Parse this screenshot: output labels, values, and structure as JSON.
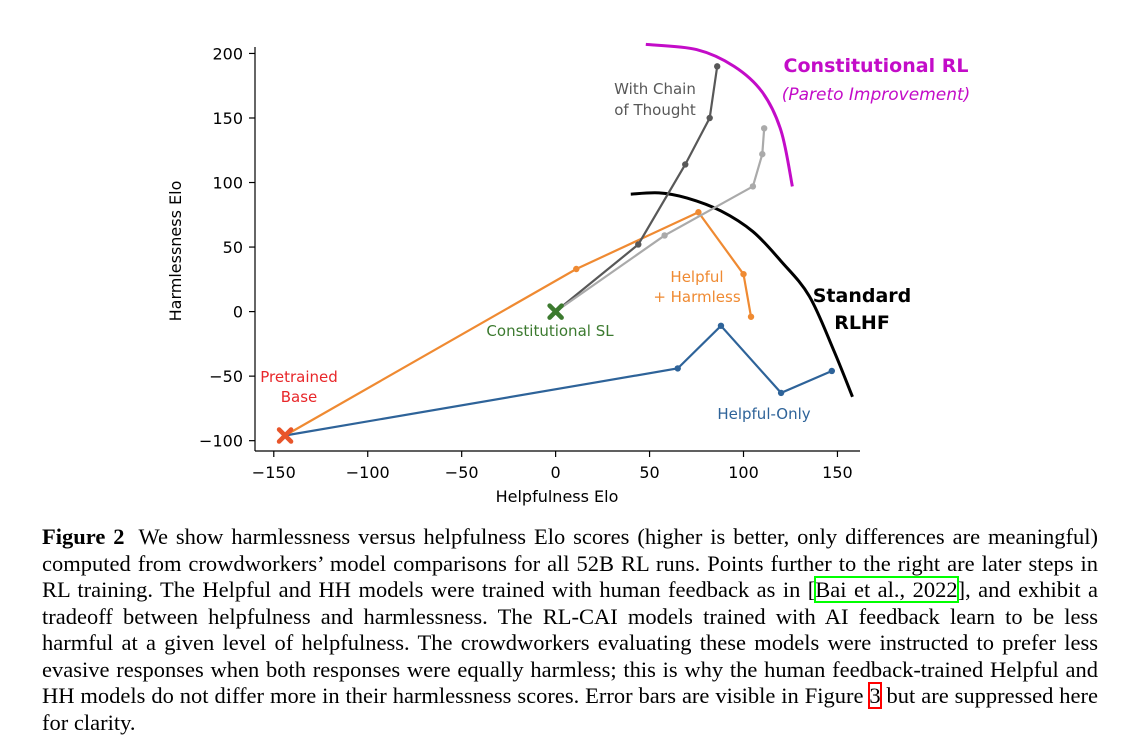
{
  "chart_data": {
    "type": "line",
    "xlabel": "Helpfulness Elo",
    "ylabel": "Harmlessness Elo",
    "xlim": [
      -160,
      162
    ],
    "ylim": [
      -108,
      205
    ],
    "xticks": [
      -150,
      -100,
      -50,
      0,
      50,
      100,
      150
    ],
    "yticks": [
      200,
      150,
      100,
      50,
      0,
      -50,
      -100
    ],
    "xtick_labels": [
      "−150",
      "−100",
      "−50",
      "0",
      "50",
      "100",
      "150"
    ],
    "ytick_labels": [
      "200",
      "150",
      "100",
      "50",
      "0",
      "−50",
      "−100"
    ],
    "grid": false,
    "series": [
      {
        "name": "Helpful-Only",
        "color": "#2e6399",
        "points": [
          [
            -144,
            -96
          ],
          [
            65,
            -44
          ],
          [
            88,
            -11
          ],
          [
            120,
            -63
          ],
          [
            147,
            -46
          ]
        ]
      },
      {
        "name": "Helpful + Harmless",
        "color": "#ef8a32",
        "points": [
          [
            -144,
            -96
          ],
          [
            11,
            33
          ],
          [
            76,
            77
          ],
          [
            100,
            29
          ],
          [
            104,
            -4
          ]
        ]
      },
      {
        "name": "With Chain of Thought",
        "color": "#585858",
        "points": [
          [
            0,
            0
          ],
          [
            44,
            52
          ],
          [
            69,
            114
          ],
          [
            82,
            150
          ],
          [
            86,
            190
          ]
        ]
      },
      {
        "name": "",
        "color": "#aaaaaa",
        "points": [
          [
            0,
            0
          ],
          [
            58,
            59
          ],
          [
            105,
            97
          ],
          [
            110,
            122
          ],
          [
            111,
            142
          ]
        ]
      }
    ],
    "markers": [
      {
        "label": "Pretrained Base",
        "x": -144,
        "y": -96,
        "color": "#e8552a",
        "shape": "x"
      },
      {
        "label": "Constitutional SL",
        "x": 0,
        "y": 0,
        "color": "#3c7a2f",
        "shape": "x"
      }
    ],
    "frontiers": [
      {
        "name": "Standard RLHF",
        "color": "#000000",
        "points": [
          [
            40,
            91
          ],
          [
            55,
            92
          ],
          [
            70,
            88
          ],
          [
            88,
            78
          ],
          [
            105,
            62
          ],
          [
            120,
            39
          ],
          [
            135,
            12
          ],
          [
            148,
            -30
          ],
          [
            158,
            -66
          ]
        ]
      },
      {
        "name": "Constitutional RL",
        "color": "#c30cc8",
        "points": [
          [
            48,
            207
          ],
          [
            75,
            203
          ],
          [
            95,
            190
          ],
          [
            110,
            170
          ],
          [
            120,
            140
          ],
          [
            126,
            97
          ]
        ]
      }
    ],
    "annotations": {
      "cot_line1": "With Chain",
      "cot_line2": "of Thought",
      "crl_title": "Constitutional RL",
      "crl_sub": "(Pareto Improvement)",
      "rlhf_line1": "Standard",
      "rlhf_line2": "RLHF",
      "hh_line1": "Helpful",
      "hh_line2": "+ Harmless",
      "csl": "Constitutional SL",
      "pb_line1": "Pretrained",
      "pb_line2": "Base",
      "ho": "Helpful-Only"
    }
  },
  "caption": {
    "label": "Figure 2",
    "part1": "We show harmlessness versus helpfulness Elo scores (higher is better, only differences are meaningful) computed from crowdworkers’ model comparisons for all 52B RL runs. Points further to the right are later steps in RL training. The Helpful and HH models were trained with human feedback as in [",
    "citation": "Bai et al., 2022",
    "part2": "], and exhibit a tradeoff between helpfulness and harmlessness. The RL-CAI models trained with AI feedback learn to be less harmful at a given level of helpfulness. The crowdworkers evaluating these models were instructed to prefer less evasive responses when both responses were equally harmless; this is why the human feedback-trained Helpful and HH models do not differ more in their harmlessness scores. Error bars are visible in Figure ",
    "figref": "3",
    "part3": " but are suppressed here for clarity."
  }
}
